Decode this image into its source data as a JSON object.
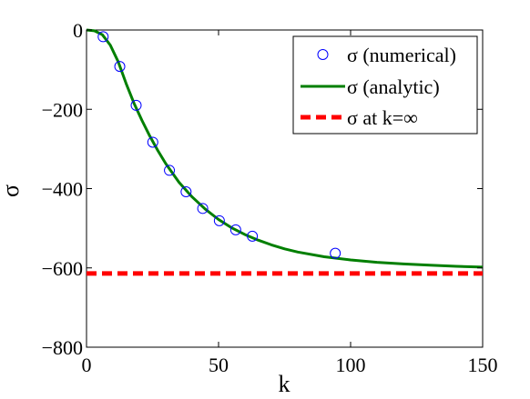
{
  "chart_data": {
    "type": "line",
    "xlabel": "k",
    "ylabel": "σ",
    "xlim": [
      0,
      150
    ],
    "ylim": [
      -800,
      0
    ],
    "xticks": [
      0,
      50,
      100,
      150
    ],
    "yticks": [
      0,
      -200,
      -400,
      -600,
      -800
    ],
    "xtick_labels": [
      "0",
      "50",
      "100",
      "150"
    ],
    "ytick_labels": [
      "0",
      "−200",
      "−400",
      "−600",
      "−800"
    ],
    "grid": false,
    "legend_position": "top-right",
    "series": [
      {
        "name": "σ (numerical)",
        "kind": "scatter",
        "marker": "open-circle",
        "color": "#0000ff",
        "points": [
          [
            6.3,
            -17
          ],
          [
            12.6,
            -92
          ],
          [
            18.8,
            -190
          ],
          [
            25.1,
            -283
          ],
          [
            31.4,
            -354
          ],
          [
            37.7,
            -408
          ],
          [
            44.0,
            -450
          ],
          [
            50.3,
            -481
          ],
          [
            56.5,
            -504
          ],
          [
            62.8,
            -520
          ],
          [
            94.2,
            -563
          ]
        ]
      },
      {
        "name": "σ (analytic)",
        "kind": "line",
        "color": "#007f00",
        "points": [
          [
            0,
            0
          ],
          [
            3,
            -2
          ],
          [
            6,
            -12
          ],
          [
            9,
            -38
          ],
          [
            12,
            -80
          ],
          [
            15,
            -135
          ],
          [
            18,
            -185
          ],
          [
            21,
            -228
          ],
          [
            24,
            -268
          ],
          [
            27,
            -304
          ],
          [
            30,
            -337
          ],
          [
            35,
            -384
          ],
          [
            40,
            -421
          ],
          [
            45,
            -452
          ],
          [
            50,
            -478
          ],
          [
            55,
            -499
          ],
          [
            60,
            -516
          ],
          [
            65,
            -530
          ],
          [
            70,
            -542
          ],
          [
            75,
            -552
          ],
          [
            80,
            -560
          ],
          [
            90,
            -572
          ],
          [
            100,
            -580
          ],
          [
            110,
            -586
          ],
          [
            120,
            -590
          ],
          [
            130,
            -593
          ],
          [
            140,
            -596
          ],
          [
            150,
            -598
          ]
        ]
      },
      {
        "name": "σ at k=∞",
        "kind": "hline",
        "color": "#ff0000",
        "dash": true,
        "y": -614
      }
    ]
  }
}
